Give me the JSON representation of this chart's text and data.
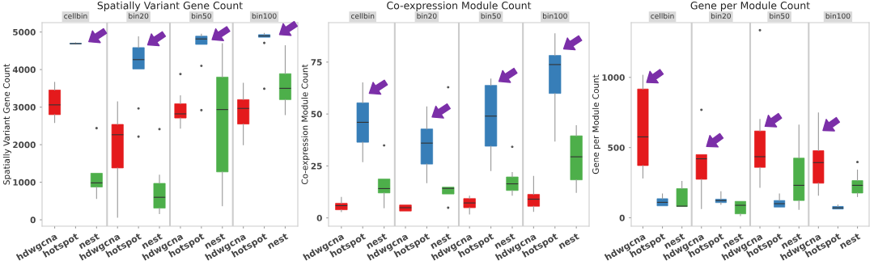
{
  "chart_data": [
    {
      "type": "box",
      "title": "Spatially Variant Gene Count",
      "ylabel": "Spatially Variant Gene Count",
      "annotations": [
        "cellbin",
        "bin20",
        "bin50",
        "bin100"
      ],
      "categories": [
        "hdwgcna",
        "hotspot",
        "nest",
        "hdwgcna",
        "hotspot",
        "nest",
        "hdwgcna",
        "hotspot",
        "nest",
        "hdwgcna",
        "hotspot",
        "nest"
      ],
      "colors": [
        "#e41a1c",
        "#377eb8",
        "#4daf4a",
        "#e41a1c",
        "#377eb8",
        "#4daf4a",
        "#e41a1c",
        "#377eb8",
        "#4daf4a",
        "#e41a1c",
        "#377eb8",
        "#4daf4a"
      ],
      "ylim": [
        -170,
        5250
      ],
      "yticks": [
        0,
        1000,
        2000,
        3000,
        4000,
        5000
      ],
      "boxes": [
        {
          "low": 2590,
          "q1": 2800,
          "median": 3060,
          "q3": 3455,
          "high": 3660
        },
        {
          "low": 4680,
          "q1": 4685,
          "median": 4690,
          "q3": 4700,
          "high": 4710
        },
        {
          "low": 568,
          "q1": 873,
          "median": 983,
          "q3": 1240,
          "high": 1240,
          "outliers": [
            2440
          ]
        },
        {
          "low": 70,
          "q1": 1380,
          "median": 2265,
          "q3": 2540,
          "high": 3140
        },
        {
          "low": 4015,
          "q1": 4015,
          "median": 4265,
          "q3": 4585,
          "high": 4875,
          "outliers": [
            2965,
            2215
          ]
        },
        {
          "low": 165,
          "q1": 310,
          "median": 600,
          "q3": 970,
          "high": 1190,
          "outliers": [
            2415
          ]
        },
        {
          "low": 2440,
          "q1": 2710,
          "median": 2820,
          "q3": 3090,
          "high": 3300,
          "outliers": [
            3880
          ]
        },
        {
          "low": 4670,
          "q1": 4670,
          "median": 4815,
          "q3": 4890,
          "high": 4945,
          "outliers": [
            4100,
            2920
          ]
        },
        {
          "low": 375,
          "q1": 1275,
          "median": 2935,
          "q3": 3800,
          "high": 4690
        },
        {
          "low": 2000,
          "q1": 2550,
          "median": 2965,
          "q3": 3200,
          "high": 3635
        },
        {
          "low": 4860,
          "q1": 4860,
          "median": 4895,
          "q3": 4930,
          "high": 4965,
          "outliers": [
            4710,
            3490
          ]
        },
        {
          "low": 2800,
          "q1": 3200,
          "median": 3500,
          "q3": 3890,
          "high": 4635
        }
      ]
    },
    {
      "type": "box",
      "title": "Co-expression Module Count",
      "ylabel": "Co-expression Module Count",
      "annotations": [
        "cellbin",
        "bin20",
        "bin50",
        "bin100"
      ],
      "categories": [
        "hdwgcna",
        "hotspot",
        "nest",
        "hdwgcna",
        "hotspot",
        "nest",
        "hdwgcna",
        "hotspot",
        "nest",
        "hdwgcna",
        "hotspot",
        "nest"
      ],
      "colors": [
        "#e41a1c",
        "#377eb8",
        "#4daf4a",
        "#e41a1c",
        "#377eb8",
        "#4daf4a",
        "#e41a1c",
        "#377eb8",
        "#4daf4a",
        "#e41a1c",
        "#377eb8",
        "#4daf4a"
      ],
      "ylim": [
        -4,
        94
      ],
      "yticks": [
        0,
        25,
        50,
        75
      ],
      "boxes": [
        {
          "low": 3,
          "q1": 3.9,
          "median": 5.9,
          "q3": 7,
          "high": 9.9
        },
        {
          "low": 27,
          "q1": 36.4,
          "median": 46,
          "q3": 55.4,
          "high": 65
        },
        {
          "low": 4.9,
          "q1": 12,
          "median": 14.1,
          "q3": 18.7,
          "high": 18.7,
          "outliers": [
            34.9
          ]
        },
        {
          "low": 3.3,
          "q1": 3.3,
          "median": 4.9,
          "q3": 6.2,
          "high": 6.2
        },
        {
          "low": 16.9,
          "q1": 25.9,
          "median": 36,
          "q3": 42.8,
          "high": 53.4
        },
        {
          "low": 11.5,
          "q1": 11.5,
          "median": 14.2,
          "q3": 14.8,
          "high": 14.8,
          "outliers": [
            62.9,
            4.9
          ]
        },
        {
          "low": 1.9,
          "q1": 4.9,
          "median": 7.2,
          "q3": 9.3,
          "high": 10.5
        },
        {
          "low": 22.8,
          "q1": 34.5,
          "median": 49,
          "q3": 63.8,
          "high": 66.9
        },
        {
          "low": 10.9,
          "q1": 13.2,
          "median": 16.4,
          "q3": 19.7,
          "high": 21.8,
          "outliers": [
            34.2
          ]
        },
        {
          "low": 3.1,
          "q1": 5.6,
          "median": 9,
          "q3": 11.3,
          "high": 20
        },
        {
          "low": 37,
          "q1": 59.9,
          "median": 73.8,
          "q3": 78.2,
          "high": 88.6
        },
        {
          "low": 12.3,
          "q1": 18.3,
          "median": 29.4,
          "q3": 39.5,
          "high": 44.4
        }
      ]
    },
    {
      "type": "box",
      "title": "Gene per Module Count",
      "ylabel": "Gene per Module Count",
      "annotations": [
        "cellbin",
        "bin20",
        "bin50",
        "bin100"
      ],
      "categories": [
        "hdwgcna",
        "hotspot",
        "nest",
        "hdwgcna",
        "hotspot",
        "nest",
        "hdwgcna",
        "hotspot",
        "nest",
        "hdwgcna",
        "hotspot",
        "nest"
      ],
      "colors": [
        "#e41a1c",
        "#377eb8",
        "#4daf4a",
        "#e41a1c",
        "#377eb8",
        "#4daf4a",
        "#e41a1c",
        "#377eb8",
        "#4daf4a",
        "#e41a1c",
        "#377eb8",
        "#4daf4a"
      ],
      "ylim": [
        -60,
        1390
      ],
      "yticks": [
        0,
        500,
        1000
      ],
      "boxes": [
        {
          "low": 283,
          "q1": 372,
          "median": 576,
          "q3": 917,
          "high": 1015
        },
        {
          "low": 85,
          "q1": 85,
          "median": 110,
          "q3": 136,
          "high": 170
        },
        {
          "low": 80,
          "q1": 80,
          "median": 83,
          "q3": 208,
          "high": 259
        },
        {
          "low": 66,
          "q1": 274,
          "median": 420,
          "q3": 450,
          "high": 450,
          "outliers": [
            769
          ]
        },
        {
          "low": 95,
          "q1": 108,
          "median": 123,
          "q3": 132,
          "high": 185
        },
        {
          "low": 15,
          "q1": 28,
          "median": 89,
          "q3": 117,
          "high": 117
        },
        {
          "low": 217,
          "q1": 359,
          "median": 435,
          "q3": 618,
          "high": 700,
          "outliers": [
            1336
          ]
        },
        {
          "low": 76,
          "q1": 76,
          "median": 100,
          "q3": 123,
          "high": 170
        },
        {
          "low": 60,
          "q1": 123,
          "median": 231,
          "q3": 425,
          "high": 661
        },
        {
          "low": 161,
          "q1": 246,
          "median": 393,
          "q3": 478,
          "high": 747
        },
        {
          "low": 62,
          "q1": 62,
          "median": 70,
          "q3": 81,
          "high": 91
        },
        {
          "low": 151,
          "q1": 176,
          "median": 231,
          "q3": 265,
          "high": 340,
          "outliers": [
            397
          ]
        }
      ]
    }
  ]
}
